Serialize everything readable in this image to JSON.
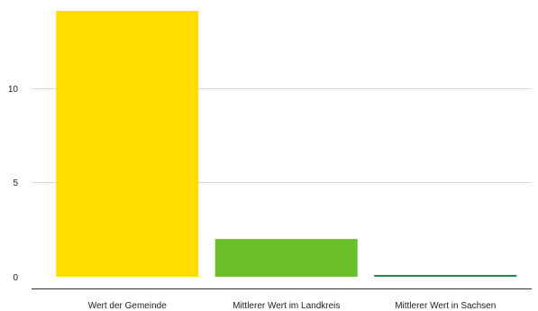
{
  "chart_data": {
    "type": "bar",
    "categories": [
      "Wert der Gemeinde",
      "Mittlerer Wert im Landkreis",
      "Mittlerer Wert in Sachsen"
    ],
    "values": [
      14.1,
      2.0,
      0.05
    ],
    "colors": [
      "#ffdd00",
      "#6abf2a",
      "#1f8a4c"
    ],
    "ylim": [
      0,
      14.1
    ],
    "yticks": [
      0,
      5,
      10
    ],
    "ytick_labels": [
      "0",
      "5",
      "10"
    ],
    "grid": true,
    "title": "",
    "xlabel": "",
    "ylabel": ""
  }
}
